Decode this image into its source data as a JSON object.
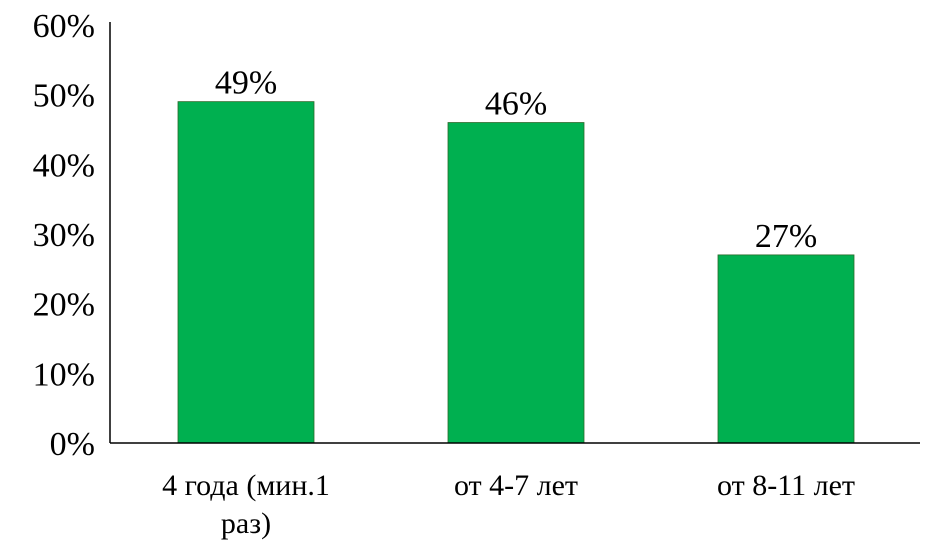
{
  "chart_data": {
    "type": "bar",
    "categories": [
      [
        "4 года (мин.1",
        "раз)"
      ],
      [
        "от 4-7 лет"
      ],
      [
        "от 8-11 лет"
      ]
    ],
    "values": [
      49,
      46,
      27
    ],
    "data_labels": [
      "49%",
      "46%",
      "27%"
    ],
    "ylim": [
      0,
      60
    ],
    "yticks": [
      0,
      10,
      20,
      30,
      40,
      50,
      60
    ],
    "ytick_labels": [
      "0%",
      "10%",
      "20%",
      "30%",
      "40%",
      "50%",
      "60%"
    ],
    "title": "",
    "xlabel": "",
    "ylabel": "",
    "grid": false,
    "legend": "none",
    "bar_color": "#00b050"
  }
}
